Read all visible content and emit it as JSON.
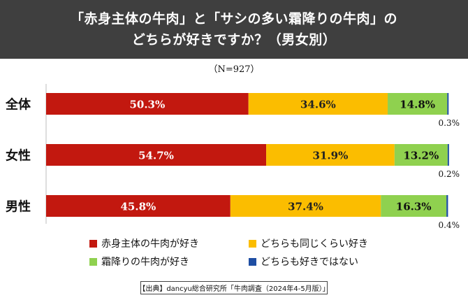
{
  "title": {
    "line1": "「赤身主体の牛肉」と「サシの多い霜降りの牛肉」の",
    "line2": "どちらが好きですか？（男女別）"
  },
  "sample_note": "（N=927）",
  "source": "【出典】dancyu総合研究所「牛肉調査（2024年4-5月版）」",
  "chart_data": {
    "type": "bar",
    "orientation": "horizontal-stacked-100",
    "categories": [
      "全体",
      "女性",
      "男性"
    ],
    "series": [
      {
        "name": "赤身主体の牛肉が好き",
        "values": [
          50.3,
          54.7,
          45.8
        ],
        "color": "#c2180f",
        "label_color": "#ffffff"
      },
      {
        "name": "どちらも同じくらい好き",
        "values": [
          34.6,
          31.9,
          37.4
        ],
        "color": "#fbbd00",
        "label_color": "#222222"
      },
      {
        "name": "霜降りの牛肉が好き",
        "values": [
          14.8,
          13.2,
          16.3
        ],
        "color": "#8fd14f",
        "label_color": "#111111"
      },
      {
        "name": "どちらも好きではない",
        "values": [
          0.3,
          0.2,
          0.4
        ],
        "color": "#1f4ea3",
        "label_color": "#111111"
      }
    ],
    "value_labels": [
      [
        "50.3%",
        "34.6%",
        "14.8%",
        "0.3%"
      ],
      [
        "54.7%",
        "31.9%",
        "13.2%",
        "0.2%"
      ],
      [
        "45.8%",
        "37.4%",
        "16.3%",
        "0.4%"
      ]
    ],
    "xlim": [
      0,
      100
    ],
    "legend_position": "bottom"
  }
}
